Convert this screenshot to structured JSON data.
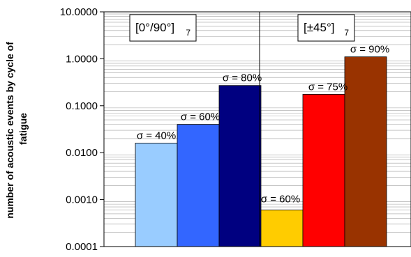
{
  "chart_data": {
    "type": "bar",
    "title": "",
    "xlabel": "",
    "ylabel_line1": "number of acoustic events by cycle of",
    "ylabel_line2": "fatigue",
    "yscale": "log",
    "ylim": [
      0.0001,
      10
    ],
    "yticks": [
      "10.0000",
      "1.0000",
      "0.1000",
      "0.0100",
      "0.0010",
      "0.0001"
    ],
    "grid": "horizontal minor gridlines",
    "groups": [
      {
        "label": "[0°/90°]",
        "subscript": "7",
        "bars": [
          {
            "label": "σ = 40%",
            "value": 0.016,
            "color": "#99ccff"
          },
          {
            "label": "σ = 60%",
            "value": 0.04,
            "color": "#3366ff"
          },
          {
            "label": "σ = 80%",
            "value": 0.27,
            "color": "#000080"
          }
        ]
      },
      {
        "label": "[±45°]",
        "subscript": "7",
        "bars": [
          {
            "label": "σ = 60%",
            "value": 0.0006,
            "color": "#ffcc00"
          },
          {
            "label": "σ = 75%",
            "value": 0.175,
            "color": "#ff0000"
          },
          {
            "label": "σ = 90%",
            "value": 1.1,
            "color": "#993300"
          }
        ]
      }
    ]
  }
}
